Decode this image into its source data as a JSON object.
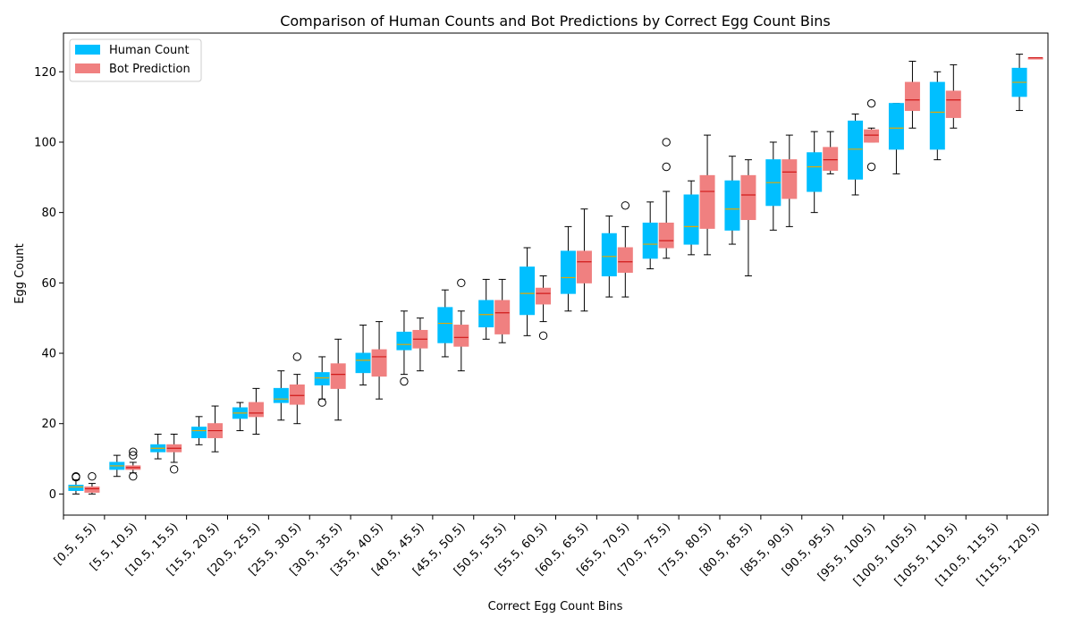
{
  "chart_data": {
    "type": "boxplot",
    "title": "Comparison of Human Counts and Bot Predictions by Correct Egg Count Bins",
    "xlabel": "Correct Egg Count Bins",
    "ylabel": "Egg Count",
    "ylim": [
      -6,
      131
    ],
    "yticks": [
      0,
      20,
      40,
      60,
      80,
      100,
      120
    ],
    "legend": {
      "placement": "top-left",
      "entries": [
        {
          "name": "Human Count",
          "color": "#00bfff"
        },
        {
          "name": "Bot Prediction",
          "color": "#f08080"
        }
      ]
    },
    "colors": {
      "human": "#00bfff",
      "bot": "#f08080",
      "human_median": "#e6a800",
      "bot_median": "#d11a1a"
    },
    "categories": [
      "[0.5, 5.5)",
      "[5.5, 10.5)",
      "[10.5, 15.5)",
      "[15.5, 20.5)",
      "[20.5, 25.5)",
      "[25.5, 30.5)",
      "[30.5, 35.5)",
      "[35.5, 40.5)",
      "[40.5, 45.5)",
      "[45.5, 50.5)",
      "[50.5, 55.5)",
      "[55.5, 60.5)",
      "[60.5, 65.5)",
      "[65.5, 70.5)",
      "[70.5, 75.5)",
      "[75.5, 80.5)",
      "[80.5, 85.5)",
      "[85.5, 90.5)",
      "[90.5, 95.5)",
      "[95.5, 100.5)",
      "[100.5, 105.5)",
      "[105.5, 110.5)",
      "[110.5, 115.5)",
      "[115.5, 120.5)"
    ],
    "series": [
      {
        "name": "Human Count",
        "boxes": [
          {
            "min": 0,
            "q1": 1,
            "median": 2,
            "q3": 2.5,
            "max": 4,
            "fliers": [
              5,
              4.8
            ]
          },
          {
            "min": 5,
            "q1": 7,
            "median": 8,
            "q3": 9,
            "max": 11,
            "fliers": []
          },
          {
            "min": 10,
            "q1": 12,
            "median": 13,
            "q3": 14,
            "max": 17,
            "fliers": []
          },
          {
            "min": 14,
            "q1": 16,
            "median": 18,
            "q3": 19,
            "max": 22,
            "fliers": []
          },
          {
            "min": 18,
            "q1": 21.5,
            "median": 23,
            "q3": 24.5,
            "max": 26,
            "fliers": []
          },
          {
            "min": 21,
            "q1": 26,
            "median": 27,
            "q3": 30,
            "max": 35,
            "fliers": []
          },
          {
            "min": 27,
            "q1": 31,
            "median": 33,
            "q3": 34.5,
            "max": 39,
            "fliers": [
              26
            ]
          },
          {
            "min": 31,
            "q1": 34.5,
            "median": 38,
            "q3": 40,
            "max": 48,
            "fliers": []
          },
          {
            "min": 34,
            "q1": 41,
            "median": 42.5,
            "q3": 46,
            "max": 52,
            "fliers": [
              32
            ]
          },
          {
            "min": 39,
            "q1": 43,
            "median": 48.5,
            "q3": 53,
            "max": 58,
            "fliers": []
          },
          {
            "min": 44,
            "q1": 47.5,
            "median": 51,
            "q3": 55,
            "max": 61,
            "fliers": []
          },
          {
            "min": 45,
            "q1": 51,
            "median": 57,
            "q3": 64.5,
            "max": 70,
            "fliers": []
          },
          {
            "min": 52,
            "q1": 57,
            "median": 61.5,
            "q3": 69,
            "max": 76,
            "fliers": []
          },
          {
            "min": 56,
            "q1": 62,
            "median": 67.5,
            "q3": 74,
            "max": 79,
            "fliers": []
          },
          {
            "min": 64,
            "q1": 67,
            "median": 71,
            "q3": 77,
            "max": 83,
            "fliers": []
          },
          {
            "min": 68,
            "q1": 71,
            "median": 76,
            "q3": 85,
            "max": 89,
            "fliers": []
          },
          {
            "min": 71,
            "q1": 75,
            "median": 81,
            "q3": 89,
            "max": 96,
            "fliers": []
          },
          {
            "min": 75,
            "q1": 82,
            "median": 88.5,
            "q3": 95,
            "max": 100,
            "fliers": []
          },
          {
            "min": 80,
            "q1": 86,
            "median": 93,
            "q3": 97,
            "max": 103,
            "fliers": []
          },
          {
            "min": 85,
            "q1": 89.5,
            "median": 98,
            "q3": 106,
            "max": 108,
            "fliers": []
          },
          {
            "min": 91,
            "q1": 98,
            "median": 104,
            "q3": 111,
            "max": 111,
            "fliers": []
          },
          {
            "min": 95,
            "q1": 98,
            "median": 108.5,
            "q3": 117,
            "max": 120,
            "fliers": []
          },
          null,
          {
            "min": 109,
            "q1": 113,
            "median": 117,
            "q3": 121,
            "max": 125,
            "fliers": []
          }
        ]
      },
      {
        "name": "Bot Prediction",
        "boxes": [
          {
            "min": 0,
            "q1": 0.5,
            "median": 1.5,
            "q3": 2,
            "max": 3,
            "fliers": [
              5
            ]
          },
          {
            "min": 6,
            "q1": 7,
            "median": 7.5,
            "q3": 8,
            "max": 9,
            "fliers": [
              12,
              11,
              5
            ]
          },
          {
            "min": 9,
            "q1": 12,
            "median": 13,
            "q3": 14,
            "max": 17,
            "fliers": [
              7
            ]
          },
          {
            "min": 12,
            "q1": 16,
            "median": 18,
            "q3": 20,
            "max": 25,
            "fliers": []
          },
          {
            "min": 17,
            "q1": 22,
            "median": 23,
            "q3": 26,
            "max": 30,
            "fliers": []
          },
          {
            "min": 20,
            "q1": 25.5,
            "median": 28,
            "q3": 31,
            "max": 34,
            "fliers": [
              39
            ]
          },
          {
            "min": 21,
            "q1": 30,
            "median": 34,
            "q3": 37,
            "max": 44,
            "fliers": []
          },
          {
            "min": 27,
            "q1": 33.5,
            "median": 39,
            "q3": 41,
            "max": 49,
            "fliers": []
          },
          {
            "min": 35,
            "q1": 41.5,
            "median": 44,
            "q3": 46.5,
            "max": 50,
            "fliers": []
          },
          {
            "min": 35,
            "q1": 42,
            "median": 44.5,
            "q3": 48,
            "max": 52,
            "fliers": [
              60
            ]
          },
          {
            "min": 43,
            "q1": 45.5,
            "median": 51.5,
            "q3": 55,
            "max": 61,
            "fliers": []
          },
          {
            "min": 49,
            "q1": 54,
            "median": 57,
            "q3": 58.5,
            "max": 62,
            "fliers": [
              45
            ]
          },
          {
            "min": 52,
            "q1": 60,
            "median": 66,
            "q3": 69,
            "max": 81,
            "fliers": []
          },
          {
            "min": 56,
            "q1": 63,
            "median": 66,
            "q3": 70,
            "max": 76,
            "fliers": [
              82
            ]
          },
          {
            "min": 67,
            "q1": 70,
            "median": 72,
            "q3": 77,
            "max": 86,
            "fliers": [
              100,
              93
            ]
          },
          {
            "min": 68,
            "q1": 75.5,
            "median": 86,
            "q3": 90.5,
            "max": 102,
            "fliers": []
          },
          {
            "min": 62,
            "q1": 78,
            "median": 85,
            "q3": 90.5,
            "max": 95,
            "fliers": []
          },
          {
            "min": 76,
            "q1": 84,
            "median": 91.5,
            "q3": 95,
            "max": 102,
            "fliers": []
          },
          {
            "min": 91,
            "q1": 92,
            "median": 95,
            "q3": 98.5,
            "max": 103,
            "fliers": []
          },
          {
            "min": 100,
            "q1": 100,
            "median": 102,
            "q3": 103.5,
            "max": 104,
            "fliers": [
              111,
              93
            ]
          },
          {
            "min": 104,
            "q1": 109,
            "median": 112,
            "q3": 117,
            "max": 123,
            "fliers": []
          },
          {
            "min": 104,
            "q1": 107,
            "median": 112,
            "q3": 114.5,
            "max": 122,
            "fliers": []
          },
          null,
          {
            "min": 124,
            "q1": 124,
            "median": 124,
            "q3": 124,
            "max": 124,
            "fliers": []
          }
        ]
      }
    ]
  }
}
